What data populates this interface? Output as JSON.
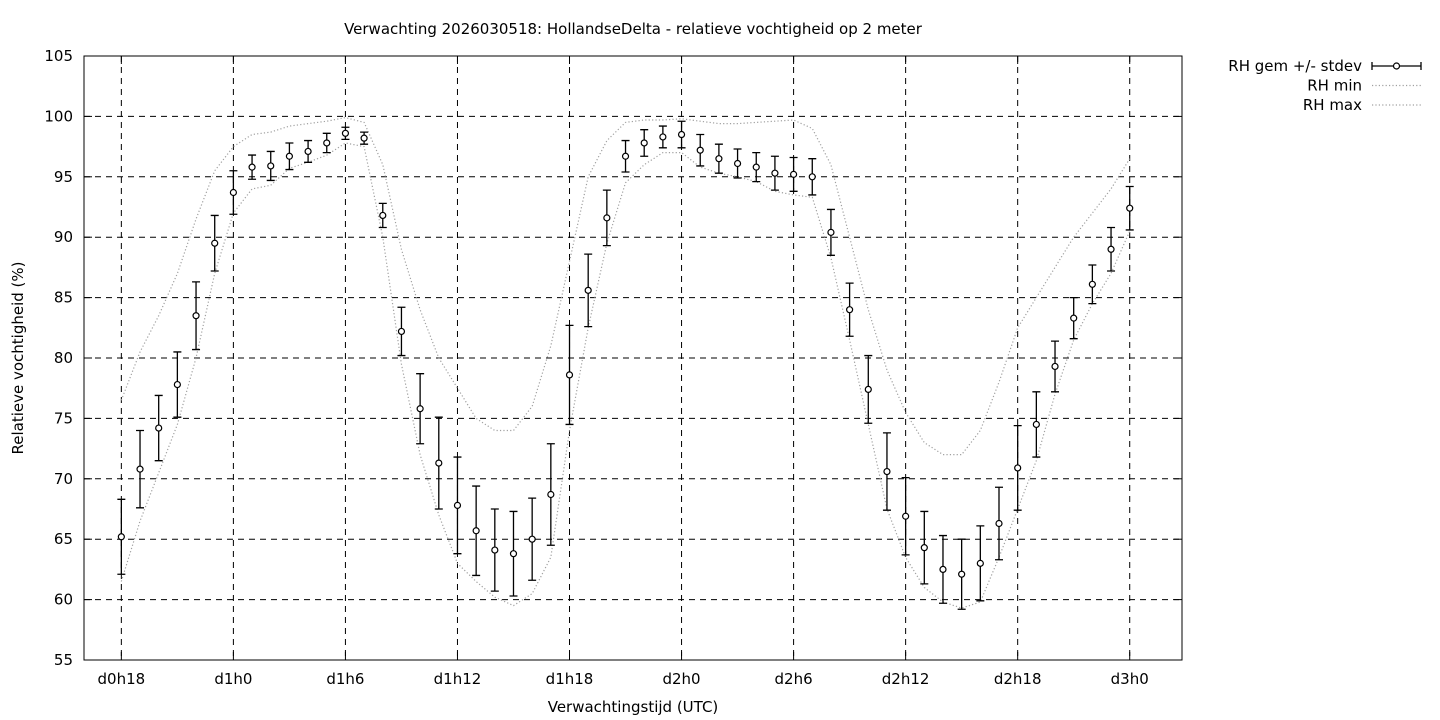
{
  "chart_data": {
    "type": "scatter",
    "title": "Verwachting 2026030518: HollandseDelta - relatieve vochtigheid op 2 meter",
    "xlabel": "Verwachtingstijd (UTC)",
    "ylabel": "Relatieve vochtigheid (%)",
    "ylim": [
      55,
      105
    ],
    "yticks": [
      55,
      60,
      65,
      70,
      75,
      80,
      85,
      90,
      95,
      100,
      105
    ],
    "xlim": [
      16.0,
      74.8
    ],
    "xticks": [
      {
        "label": "d0h18",
        "value": 18
      },
      {
        "label": "d1h0",
        "value": 24
      },
      {
        "label": "d1h6",
        "value": 30
      },
      {
        "label": "d1h12",
        "value": 36
      },
      {
        "label": "d1h18",
        "value": 42
      },
      {
        "label": "d2h0",
        "value": 48
      },
      {
        "label": "d2h6",
        "value": 54
      },
      {
        "label": "d2h12",
        "value": 60
      },
      {
        "label": "d2h18",
        "value": 66
      },
      {
        "label": "d3h0",
        "value": 72
      }
    ],
    "grid": true,
    "legend_position": "top-right outside",
    "series": [
      {
        "name": "RH gem +/- stdev",
        "style": "errorbars",
        "x": [
          18,
          19,
          20,
          21,
          22,
          23,
          24,
          25,
          26,
          27,
          28,
          29,
          30,
          31,
          32,
          33,
          34,
          35,
          36,
          37,
          38,
          39,
          40,
          41,
          42,
          43,
          44,
          45,
          46,
          47,
          48,
          49,
          50,
          51,
          52,
          53,
          54,
          55,
          56,
          57,
          58,
          59,
          60,
          61,
          62,
          63,
          64,
          65,
          66,
          67,
          68,
          69,
          70,
          71,
          72
        ],
        "y": [
          65.2,
          70.8,
          74.2,
          77.8,
          83.5,
          89.5,
          93.7,
          95.8,
          95.9,
          96.7,
          97.1,
          97.8,
          98.6,
          98.2,
          91.8,
          82.2,
          75.8,
          71.3,
          67.8,
          65.7,
          64.1,
          63.8,
          65.0,
          68.7,
          78.6,
          85.6,
          91.6,
          96.7,
          97.8,
          98.3,
          98.5,
          97.2,
          96.5,
          96.1,
          95.8,
          95.3,
          95.2,
          95.0,
          90.4,
          84.0,
          77.4,
          70.6,
          66.9,
          64.3,
          62.5,
          62.1,
          63.0,
          66.3,
          70.9,
          74.5,
          79.3,
          83.3,
          86.1,
          89.0,
          92.4
        ],
        "err": [
          3.1,
          3.2,
          2.7,
          2.7,
          2.8,
          2.3,
          1.8,
          1.0,
          1.2,
          1.1,
          0.9,
          0.8,
          0.5,
          0.5,
          1.0,
          2.0,
          2.9,
          3.8,
          4.0,
          3.7,
          3.4,
          3.5,
          3.4,
          4.2,
          4.1,
          3.0,
          2.3,
          1.3,
          1.1,
          0.9,
          1.1,
          1.3,
          1.2,
          1.2,
          1.2,
          1.4,
          1.4,
          1.5,
          1.9,
          2.2,
          2.8,
          3.2,
          3.2,
          3.0,
          2.8,
          2.9,
          3.1,
          3.0,
          3.5,
          2.7,
          2.1,
          1.7,
          1.6,
          1.8,
          1.8
        ]
      },
      {
        "name": "RH min",
        "style": "dotted",
        "x": [
          18,
          19,
          20,
          21,
          22,
          23,
          24,
          25,
          26,
          27,
          28,
          29,
          30,
          31,
          32,
          33,
          34,
          35,
          36,
          37,
          38,
          39,
          40,
          41,
          42,
          43,
          44,
          45,
          46,
          47,
          48,
          49,
          50,
          51,
          52,
          53,
          54,
          55,
          56,
          57,
          58,
          59,
          60,
          61,
          62,
          63,
          64,
          65,
          66,
          67,
          68,
          69,
          70,
          71,
          72
        ],
        "y": [
          61.5,
          66.5,
          70.5,
          74.5,
          80.0,
          87.0,
          92.0,
          94.0,
          94.3,
          95.7,
          96.2,
          96.8,
          97.8,
          97.5,
          90.0,
          79.5,
          72.0,
          67.0,
          63.0,
          61.5,
          60.2,
          59.5,
          60.5,
          63.5,
          74.0,
          82.5,
          89.5,
          94.5,
          96.0,
          97.0,
          97.0,
          95.8,
          95.3,
          95.0,
          94.6,
          93.8,
          93.5,
          93.3,
          88.3,
          81.5,
          74.5,
          67.5,
          63.5,
          61.0,
          59.8,
          59.3,
          59.8,
          63.5,
          67.5,
          71.5,
          77.0,
          81.5,
          84.5,
          87.0,
          90.5
        ]
      },
      {
        "name": "RH max",
        "style": "dotted",
        "x": [
          18,
          19,
          20,
          21,
          22,
          23,
          24,
          25,
          26,
          27,
          28,
          29,
          30,
          31,
          32,
          33,
          34,
          35,
          36,
          37,
          38,
          39,
          40,
          41,
          42,
          43,
          44,
          45,
          46,
          47,
          48,
          49,
          50,
          51,
          52,
          53,
          54,
          55,
          56,
          57,
          58,
          59,
          60,
          61,
          62,
          63,
          64,
          65,
          66,
          67,
          68,
          69,
          70,
          71,
          72
        ],
        "y": [
          76.5,
          80.5,
          83.5,
          87.0,
          91.5,
          95.5,
          97.5,
          98.5,
          98.7,
          99.2,
          99.4,
          99.6,
          99.9,
          99.5,
          96.0,
          89.0,
          84.0,
          80.0,
          77.5,
          75.0,
          74.0,
          74.0,
          76.0,
          81.0,
          88.0,
          95.0,
          98.0,
          99.5,
          99.7,
          99.7,
          99.8,
          99.6,
          99.4,
          99.4,
          99.5,
          99.6,
          99.7,
          99.0,
          96.0,
          90.0,
          84.0,
          79.0,
          75.5,
          73.0,
          72.0,
          72.0,
          74.0,
          78.0,
          82.5,
          85.0,
          87.5,
          90.0,
          92.0,
          94.0,
          96.5
        ]
      }
    ]
  }
}
